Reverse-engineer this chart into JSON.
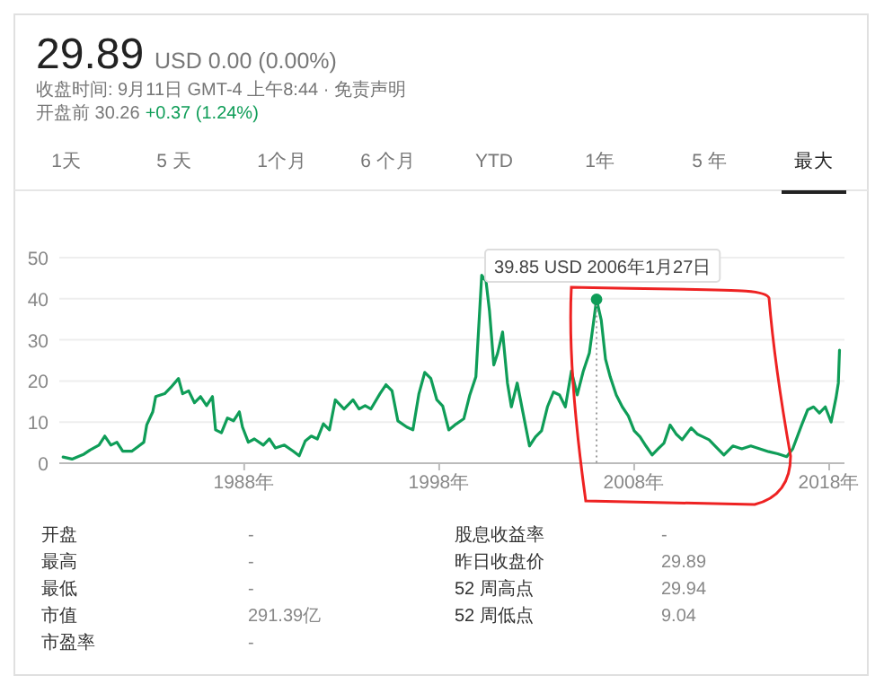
{
  "chart_data": {
    "type": "line",
    "title": "29.89",
    "subtitle": "USD 0.00 (0.00%)",
    "x": [
      1978.71,
      1979.17,
      1979.78,
      1980.09,
      1980.55,
      1980.85,
      1981.16,
      1981.47,
      1981.77,
      1982.23,
      1982.54,
      1982.85,
      1983.0,
      1983.31,
      1983.46,
      1983.92,
      1984.23,
      1984.63,
      1984.84,
      1985.15,
      1985.45,
      1985.76,
      1986.07,
      1986.37,
      1986.53,
      1986.83,
      1987.14,
      1987.45,
      1987.75,
      1987.91,
      1988.21,
      1988.52,
      1988.98,
      1989.29,
      1989.6,
      1990.06,
      1990.52,
      1990.82,
      1991.13,
      1991.44,
      1991.75,
      1992.06,
      1992.37,
      1992.67,
      1993.12,
      1993.58,
      1993.89,
      1994.2,
      1994.5,
      1994.96,
      1995.27,
      1995.58,
      1995.88,
      1996.34,
      1996.65,
      1996.96,
      1997.26,
      1997.57,
      1997.88,
      1998.18,
      1998.49,
      1998.8,
      1999.26,
      1999.57,
      1999.88,
      2000.18,
      2000.4,
      2000.58,
      2000.8,
      2001.0,
      2001.25,
      2001.5,
      2001.7,
      2002.0,
      2002.3,
      2002.63,
      2002.94,
      2003.25,
      2003.55,
      2003.86,
      2004.17,
      2004.47,
      2004.78,
      2005.08,
      2005.39,
      2005.7,
      2005.91,
      2006.07,
      2006.31,
      2006.53,
      2006.77,
      2007.08,
      2007.39,
      2007.7,
      2008.0,
      2008.3,
      2008.6,
      2008.92,
      2009.23,
      2009.53,
      2009.84,
      2010.15,
      2010.46,
      2010.92,
      2011.23,
      2011.53,
      2011.84,
      2012.15,
      2012.6,
      2013.06,
      2013.52,
      2013.98,
      2014.44,
      2014.9,
      2015.36,
      2015.82,
      2016.13,
      2016.59,
      2016.9,
      2017.2,
      2017.5,
      2017.8,
      2018.1,
      2018.35,
      2018.47,
      2018.53
    ],
    "series": [
      {
        "color": "#0f9d58",
        "values": [
          1.5,
          1.0,
          2.2,
          3.2,
          4.4,
          6.6,
          4.4,
          5.1,
          2.9,
          2.9,
          4.0,
          5.1,
          9.3,
          12.5,
          16.2,
          16.9,
          18.4,
          20.6,
          16.9,
          17.6,
          14.7,
          16.2,
          14.0,
          16.2,
          8.1,
          7.4,
          11.0,
          10.3,
          12.5,
          8.8,
          5.1,
          5.9,
          4.4,
          5.9,
          3.7,
          4.4,
          2.9,
          1.8,
          5.4,
          6.6,
          5.9,
          9.6,
          8.1,
          15.4,
          13.2,
          15.4,
          13.2,
          14.0,
          13.2,
          16.9,
          19.1,
          17.6,
          10.3,
          8.8,
          8.1,
          16.9,
          22.1,
          20.6,
          15.4,
          13.9,
          8.1,
          9.3,
          10.8,
          16.6,
          21.0,
          45.7,
          44.3,
          37.0,
          23.9,
          26.8,
          31.9,
          19.5,
          13.7,
          19.5,
          12.2,
          4.2,
          6.4,
          7.9,
          13.7,
          17.3,
          16.6,
          13.7,
          22.4,
          16.6,
          22.4,
          26.8,
          34.1,
          39.85,
          34.8,
          25.3,
          21.0,
          16.6,
          13.7,
          11.5,
          7.9,
          6.4,
          4.2,
          2.0,
          3.5,
          4.9,
          9.3,
          7.1,
          5.7,
          8.6,
          7.1,
          6.4,
          5.7,
          4.2,
          2.0,
          4.2,
          3.5,
          4.2,
          3.5,
          2.8,
          2.3,
          1.6,
          3.5,
          9.3,
          13.0,
          13.7,
          12.2,
          13.7,
          10.0,
          15.9,
          19.5,
          27.5
        ]
      }
    ],
    "xlim": [
      1978.7,
      2018.6
    ],
    "xticks": [
      {
        "value": 1988,
        "label": "1988年"
      },
      {
        "value": 1998,
        "label": "1998年"
      },
      {
        "value": 2008,
        "label": "2008年"
      },
      {
        "value": 2018,
        "label": "2018年"
      }
    ],
    "ylim": [
      0,
      50
    ],
    "yticks": [
      0,
      10,
      20,
      30,
      40,
      50
    ],
    "grid": "y",
    "marker": "none",
    "line_style": "solid",
    "annotations": [
      "收盘时间: 9月11日 GMT-4 上午8:44 · 免责声明",
      "开盘前 30.26",
      "+0.37 (1.24%)",
      "1天",
      "5 天",
      "1个月",
      "6 个月",
      "YTD",
      "1年",
      "5 年",
      "最大",
      "开盘",
      "-",
      "股息收益率",
      "-",
      "最高",
      "-",
      "昨日收盘价",
      "29.89",
      "最低",
      "-",
      "52 周高点",
      "29.94",
      "市值",
      "291.39亿",
      "52 周低点",
      "9.04",
      "市盈率",
      "-",
      {
        "text": "39.85 USD  2006年1月27日",
        "x": 2006.07,
        "y": 39.85
      }
    ]
  }
}
